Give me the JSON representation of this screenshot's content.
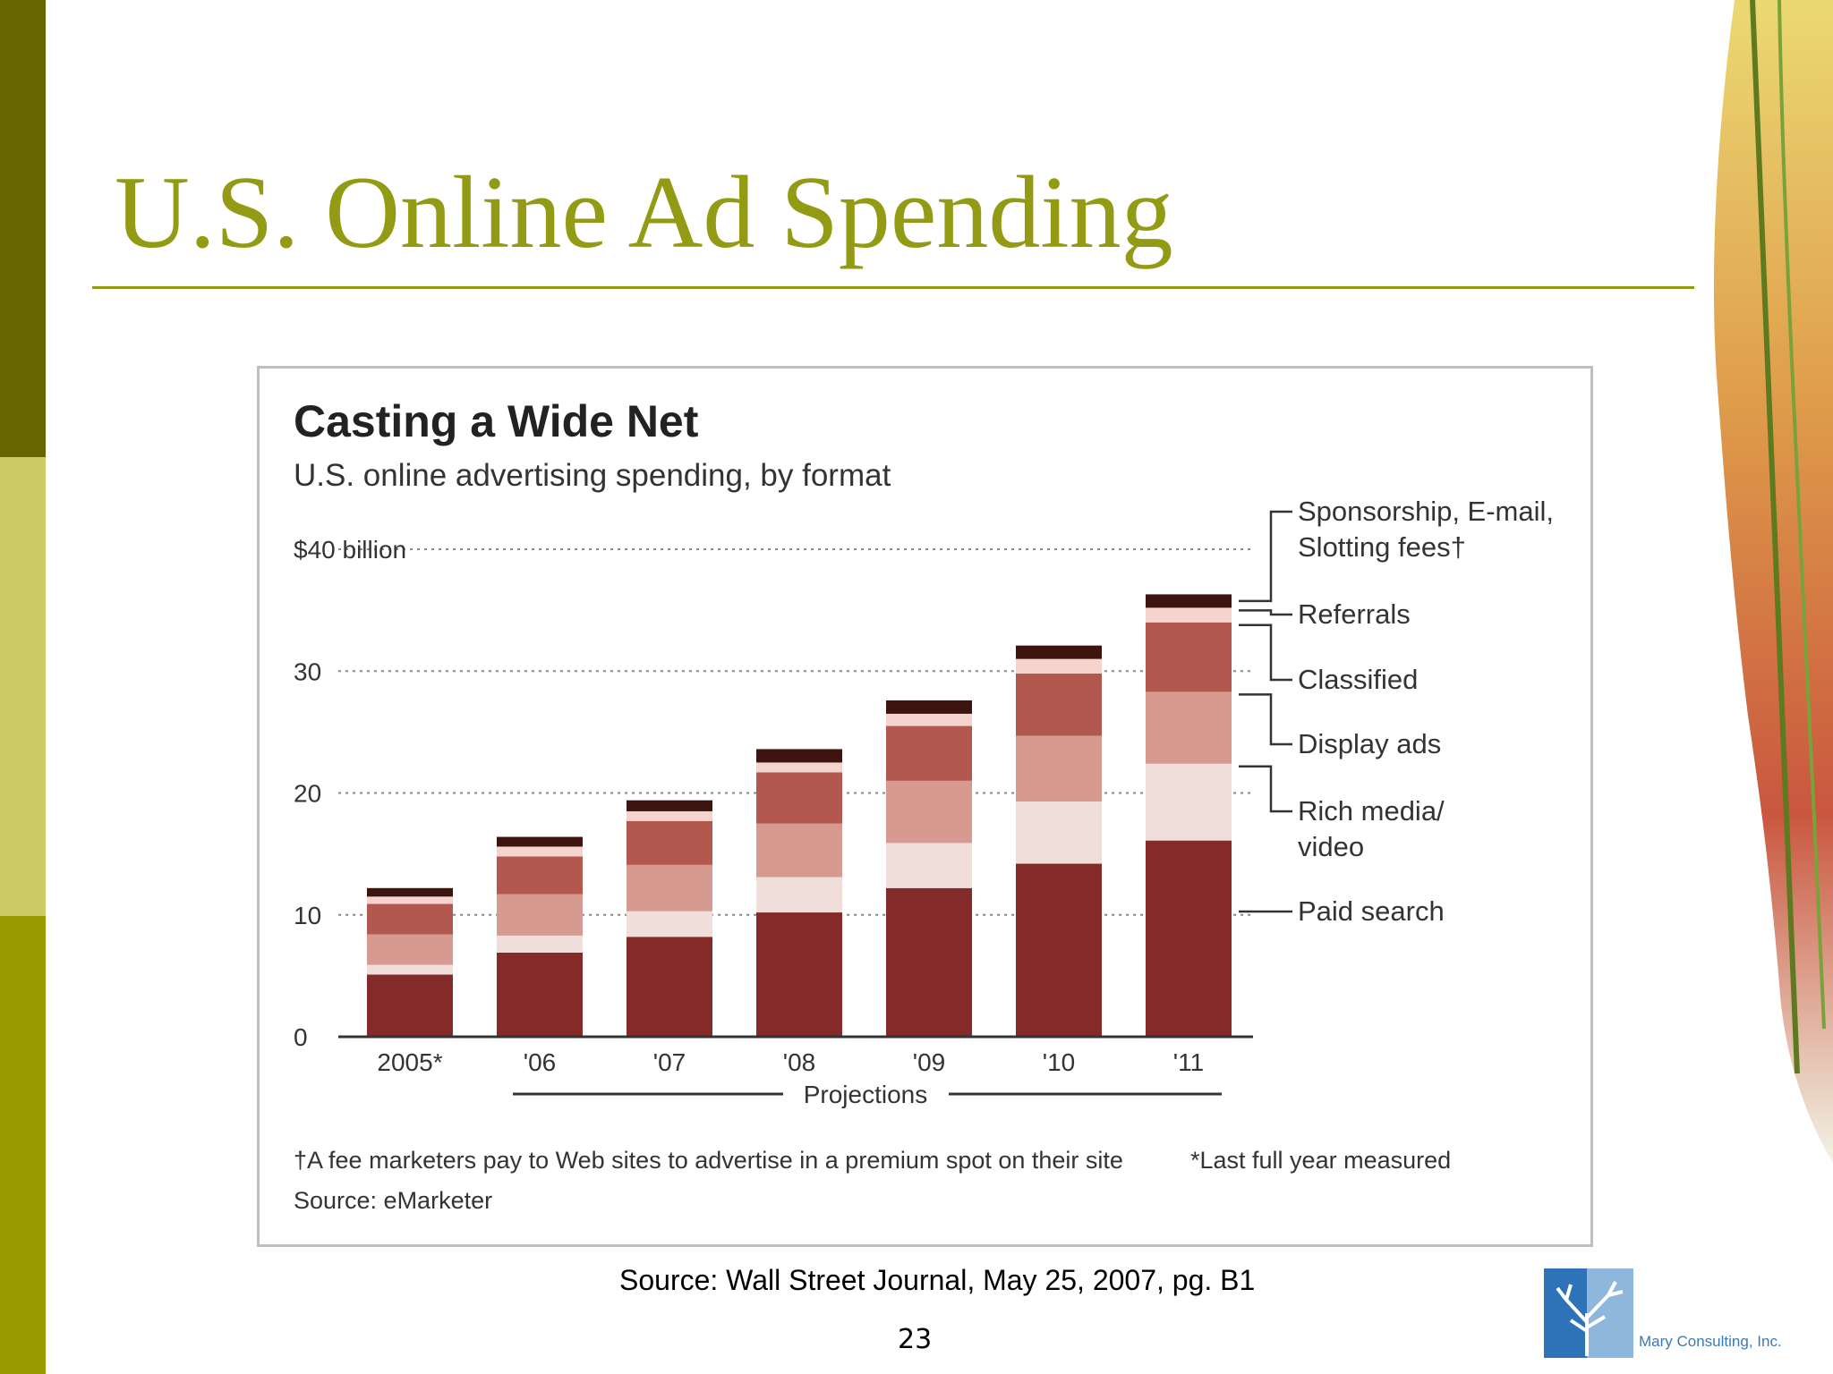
{
  "slide": {
    "title": "U.S. Online Ad Spending",
    "source": "Source: Wall Street Journal, May 25, 2007, pg. B1",
    "page_number": "23",
    "logo_text": "Mary Consulting, Inc."
  },
  "colors": {
    "title": "#939a13",
    "sidebar_dark": "#666600",
    "sidebar_light": "#cccc66",
    "sidebar_mid": "#999900",
    "paid_search": "#842b29",
    "rich_media": "#f0dedb",
    "display_ads": "#d69a91",
    "classified": "#b2584f",
    "referrals": "#f5d3cf",
    "sponsorship": "#3d1410"
  },
  "chart_data": {
    "type": "bar",
    "stacked": true,
    "title": "Casting a Wide Net",
    "subtitle": "U.S. online advertising spending, by format",
    "categories": [
      "2005*",
      "'06",
      "'07",
      "'08",
      "'09",
      "'10",
      "'11"
    ],
    "y_ticks": [
      {
        "value": 40,
        "label": "$40 billion"
      },
      {
        "value": 30,
        "label": "30"
      },
      {
        "value": 20,
        "label": "20"
      },
      {
        "value": 10,
        "label": "10"
      },
      {
        "value": 0,
        "label": "0"
      }
    ],
    "ylim": [
      0,
      40
    ],
    "grid": "dotted horizontal",
    "projections_label": "Projections",
    "series": [
      {
        "name": "Paid search",
        "color": "#842b29",
        "values": [
          5.1,
          6.9,
          8.2,
          10.2,
          12.2,
          14.2,
          16.1
        ]
      },
      {
        "name": "Rich media/ video",
        "color": "#f0dedb",
        "values": [
          0.8,
          1.4,
          2.1,
          2.9,
          3.7,
          5.1,
          6.3
        ]
      },
      {
        "name": "Display ads",
        "color": "#d69a91",
        "values": [
          2.5,
          3.4,
          3.8,
          4.4,
          5.1,
          5.4,
          5.9
        ]
      },
      {
        "name": "Classified",
        "color": "#b2584f",
        "values": [
          2.5,
          3.1,
          3.6,
          4.2,
          4.5,
          5.1,
          5.7
        ]
      },
      {
        "name": "Referrals",
        "color": "#f5d3cf",
        "values": [
          0.6,
          0.8,
          0.8,
          0.8,
          1.0,
          1.2,
          1.2
        ]
      },
      {
        "name": "Sponsorship, E-mail, Slotting fees†",
        "color": "#3d1410",
        "values": [
          0.7,
          0.8,
          0.9,
          1.1,
          1.1,
          1.1,
          1.1
        ]
      }
    ],
    "legend_labels": [
      [
        "Sponsorship, E-mail,",
        "Slotting fees†"
      ],
      [
        "Referrals"
      ],
      [
        "Classified"
      ],
      [
        "Display ads"
      ],
      [
        "Rich media/",
        "video"
      ],
      [
        "Paid search"
      ]
    ],
    "legend_position": "right",
    "footnotes": {
      "dagger": "†A fee marketers pay to Web sites to advertise in a premium spot on their site",
      "asterisk": "*Last full year measured",
      "source": "Source: eMarketer"
    }
  }
}
